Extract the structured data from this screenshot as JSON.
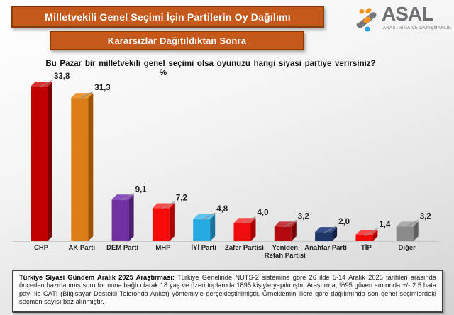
{
  "banner1": "Milletvekili Genel Seçimi İçin Partilerin Oy Dağılımı",
  "banner2": "Kararsızlar Dağıtıldıktan Sonra",
  "logo": {
    "name": "ASAL",
    "tagline": "ARAŞTIRMA VE DANIŞMANLIK"
  },
  "question": "Bu Pazar bir milletvekili genel seçimi olsa oyunuzu hangi siyasi partiye verirsiniz?",
  "unit_label": "%",
  "chart_data": {
    "type": "bar",
    "style": "3d-column",
    "title": "Milletvekili Genel Seçimi İçin Partilerin Oy Dağılımı — Kararsızlar Dağıtıldıktan Sonra",
    "xlabel": "",
    "ylabel": "%",
    "ylim": [
      0,
      35
    ],
    "grid": false,
    "legend": false,
    "categories": [
      "CHP",
      "AK Parti",
      "DEM Parti",
      "MHP",
      "İYİ Parti",
      "Zafer Partisi",
      "Yeniden Refah Partisi",
      "Anahtar Parti",
      "TİP",
      "Diğer"
    ],
    "values": [
      33.8,
      31.3,
      9.1,
      7.2,
      4.8,
      4.0,
      3.2,
      2.0,
      1.4,
      3.2
    ],
    "value_labels": [
      "33,8",
      "31,3",
      "9,1",
      "7,2",
      "4,8",
      "4,0",
      "3,2",
      "2,0",
      "1,4",
      "3,2"
    ],
    "bar_colors": [
      {
        "front": "#c00000",
        "top": "#d93030",
        "side": "#7f0000"
      },
      {
        "front": "#dd7d17",
        "top": "#ec9733",
        "side": "#9e5300"
      },
      {
        "front": "#7030a0",
        "top": "#8a4fbe",
        "side": "#4c1f70"
      },
      {
        "front": "#f50a0a",
        "top": "#ff4c4c",
        "side": "#ab0404"
      },
      {
        "front": "#27a9e1",
        "top": "#5fc3ee",
        "side": "#1674a0"
      },
      {
        "front": "#ee0c0c",
        "top": "#ff4c4c",
        "side": "#a60404"
      },
      {
        "front": "#b2090e",
        "top": "#c8393d",
        "side": "#770407"
      },
      {
        "front": "#1e3566",
        "top": "#35508d",
        "side": "#121f40"
      },
      {
        "front": "#f50505",
        "top": "#ff4747",
        "side": "#a80303"
      },
      {
        "front": "#8a8a8a",
        "top": "#ababab",
        "side": "#5e5e5e"
      }
    ]
  },
  "footnote": {
    "lead": "Türkiye Siyasi Gündem Aralık 2025 Araştırması:",
    "body": " Türkiye Genelinde NUTS-2 sistemine göre 26 ilde 5-14 Aralık 2025 tarihleri arasında önceden hazırlanmış soru formuna bağlı olarak 18 yaş ve üzeri toplamda 1895 kişiyle yapılmıştır. Araştırma; %95 güven sınırında +/- 2.5 hata payı ile CATI (Bilgisayar Destekli Telefonda Anket) yöntemiyle gerçekleştirilmiştir. Örneklemin illere göre dağılımında son genel seçimlerdeki seçmen sayısı baz alınmıştır."
  },
  "colors": {
    "banner_bg": "#c4591b",
    "banner_border": "#8a3c0b",
    "logo_gray": "#6d6e71",
    "logo_orange": "#f7941e",
    "logo_blue": "#27aae1",
    "leader_line": "#8c8c8c",
    "floor_line": "#c9c9c9",
    "text": "#1a1a1a"
  }
}
